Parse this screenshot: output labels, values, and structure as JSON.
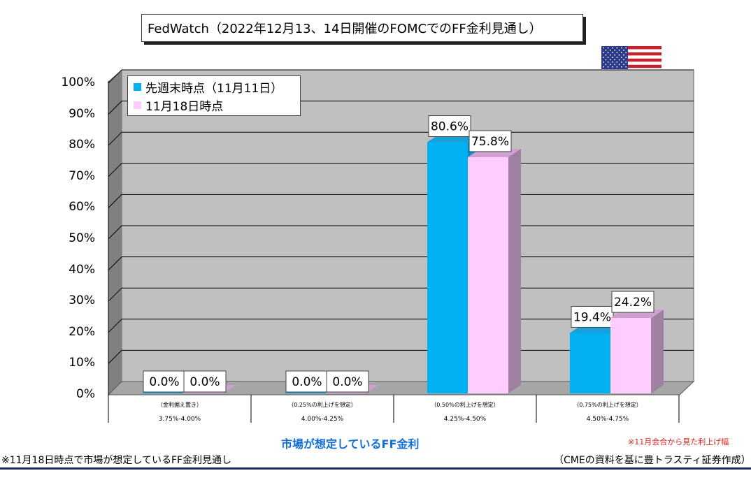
{
  "chart_data": {
    "type": "bar",
    "title": "FedWatch（2022年12月13、14日開催のFOMCでのFF金利見通し）",
    "categories": [
      {
        "main": "（金利据え置き）",
        "range": "3.75%-4.00%"
      },
      {
        "main": "（0.25%の利上げを想定）",
        "range": "4.00%-4.25%"
      },
      {
        "main": "（0.50%の利上げを想定）",
        "range": "4.25%-4.50%"
      },
      {
        "main": "（0.75%の利上げを想定）",
        "range": "4.50%-4.75%"
      }
    ],
    "series": [
      {
        "name": "先週末時点（11月11日）",
        "values": [
          0.0,
          0.0,
          80.6,
          19.4
        ],
        "labels": [
          "0.0%",
          "0.0%",
          "80.6%",
          "19.4%"
        ],
        "color": "#00b0f0",
        "side_color": "#0090c8",
        "top_color": "#1aa0d8"
      },
      {
        "name": "11月18日時点",
        "values": [
          0.0,
          0.0,
          75.8,
          24.2
        ],
        "labels": [
          "0.0%",
          "0.0%",
          "75.8%",
          "24.2%"
        ],
        "color": "#ffccff",
        "side_color": "#a080a0",
        "top_color": "#d0a0d0"
      }
    ],
    "ylim": [
      0,
      100
    ],
    "yticks": [
      "0%",
      "10%",
      "20%",
      "30%",
      "40%",
      "50%",
      "60%",
      "70%",
      "80%",
      "90%",
      "100%"
    ],
    "xlabel": "市場が想定しているFF金利",
    "grid": true,
    "legend_position": "top-left"
  },
  "flag": "us-flag",
  "notes": {
    "red_note": "※11月会合から見た利上げ幅",
    "footer_left": "※11月18日時点で市場が想定しているFF金利見通し",
    "footer_right": "（CMEの資料を基に豊トラスティ証券作成）"
  },
  "colors": {
    "plot_bg": "#c0c0c0",
    "wall_side": "#808080",
    "floor": "#a6a6a6",
    "accent_title": "#1170d8",
    "note_red": "#e0201a"
  }
}
